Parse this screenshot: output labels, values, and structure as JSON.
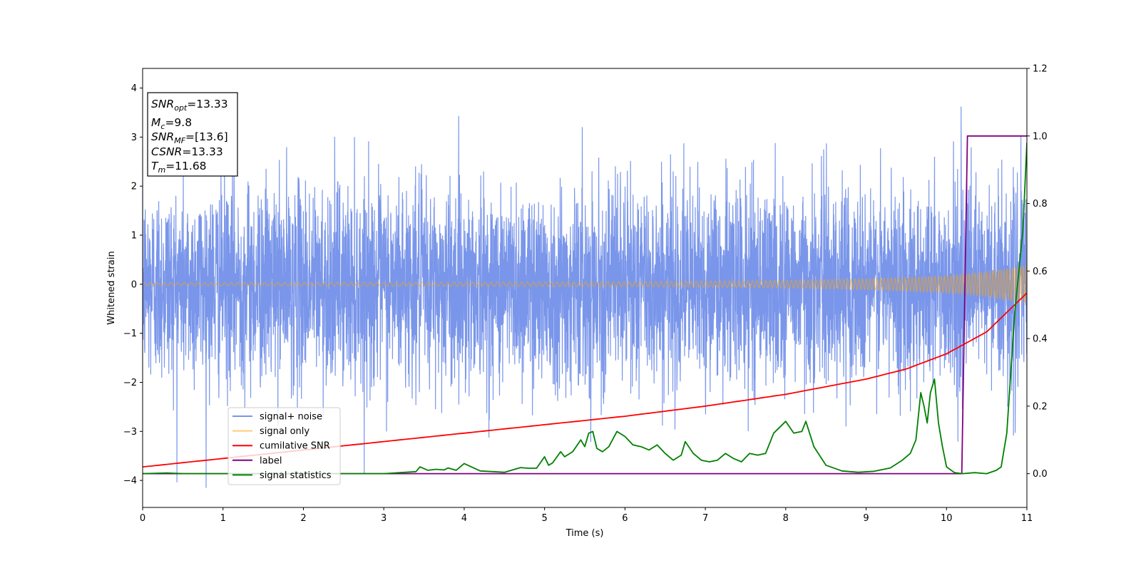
{
  "chart_data": {
    "type": "line",
    "xlabel": "Time (s)",
    "ylabel": "Whitened strain",
    "xlim": [
      0,
      11
    ],
    "ylim": [
      -4.55,
      4.4
    ],
    "y2lim": [
      -0.1,
      1.2
    ],
    "x_ticks": [
      "0",
      "1",
      "2",
      "3",
      "4",
      "5",
      "6",
      "7",
      "8",
      "9",
      "10",
      "11"
    ],
    "y_ticks": [
      "4",
      "3",
      "2",
      "1",
      "0",
      "−1",
      "−2",
      "−3",
      "−4"
    ],
    "y2_ticks": [
      "1.2",
      "1.0",
      "0.8",
      "0.6",
      "0.4",
      "0.2",
      "0.0"
    ],
    "grid": false,
    "legend_position": "lower-left",
    "info_box": {
      "snr_opt": {
        "name": "SNR",
        "sub": "opt",
        "value": "=13.33"
      },
      "mc": {
        "name": "M",
        "sub": "c",
        "value": "=9.8"
      },
      "snr_mf": {
        "name": "SNR",
        "sub": "MF",
        "value": "=[13.6]"
      },
      "csnr": {
        "name": "CSNR",
        "sub": "",
        "value": "=13.33"
      },
      "tm": {
        "name": "T",
        "sub": "m",
        "value": "=11.68"
      }
    },
    "series": [
      {
        "name": "signal+ noise",
        "axis": "left",
        "color": "#4169e1",
        "description_values": "white noise with std ≈ 1.0, sampled every ~0.0022 s over 0–11 s, extreme peaks reaching ~4.0 and ~−4.15"
      },
      {
        "name": "signal only",
        "axis": "left",
        "color": "#ffa500",
        "envelope": {
          "x": [
            0,
            6,
            8,
            9,
            10,
            10.5,
            11
          ],
          "amplitude": [
            0.03,
            0.05,
            0.08,
            0.11,
            0.17,
            0.25,
            0.38
          ]
        },
        "frequency_hz": [
          12,
          30
        ]
      },
      {
        "name": "cumilative SNR",
        "axis": "right",
        "color": "#ff0000",
        "x": [
          0,
          1,
          2,
          3,
          4,
          5,
          6,
          7,
          8,
          9,
          9.5,
          10,
          10.5,
          11
        ],
        "y": [
          0.02,
          0.045,
          0.07,
          0.095,
          0.12,
          0.145,
          0.17,
          0.2,
          0.235,
          0.28,
          0.31,
          0.355,
          0.42,
          0.535
        ]
      },
      {
        "name": "label",
        "axis": "right",
        "color": "#800080",
        "x": [
          0,
          10.19,
          10.26,
          11
        ],
        "y": [
          0.0,
          0.0,
          1.0,
          1.0
        ]
      },
      {
        "name": "signal statistics",
        "axis": "right",
        "color": "#008000",
        "x": [
          0,
          0.3,
          0.5,
          1,
          2,
          3,
          3.2,
          3.4,
          3.45,
          3.55,
          3.65,
          3.75,
          3.8,
          3.9,
          4,
          4.2,
          4.5,
          4.7,
          4.8,
          4.9,
          5.0,
          5.05,
          5.1,
          5.2,
          5.25,
          5.35,
          5.45,
          5.5,
          5.55,
          5.6,
          5.65,
          5.72,
          5.8,
          5.9,
          6.0,
          6.1,
          6.2,
          6.3,
          6.4,
          6.5,
          6.6,
          6.7,
          6.75,
          6.85,
          6.95,
          7.05,
          7.15,
          7.25,
          7.35,
          7.45,
          7.55,
          7.65,
          7.75,
          7.85,
          8.0,
          8.1,
          8.2,
          8.25,
          8.35,
          8.5,
          8.7,
          8.9,
          9.1,
          9.3,
          9.45,
          9.55,
          9.62,
          9.68,
          9.72,
          9.76,
          9.8,
          9.85,
          9.9,
          9.95,
          10.0,
          10.1,
          10.2,
          10.35,
          10.5,
          10.62,
          10.68,
          10.75,
          10.85,
          10.95,
          11.0
        ],
        "y": [
          0.0,
          0.002,
          0.0,
          0.0,
          0.0,
          0.0,
          0.003,
          0.006,
          0.02,
          0.01,
          0.013,
          0.011,
          0.017,
          0.01,
          0.03,
          0.008,
          0.004,
          0.018,
          0.016,
          0.016,
          0.05,
          0.025,
          0.032,
          0.065,
          0.05,
          0.065,
          0.1,
          0.08,
          0.12,
          0.125,
          0.075,
          0.065,
          0.08,
          0.125,
          0.11,
          0.085,
          0.08,
          0.07,
          0.085,
          0.06,
          0.04,
          0.055,
          0.095,
          0.06,
          0.04,
          0.035,
          0.04,
          0.06,
          0.045,
          0.035,
          0.06,
          0.055,
          0.06,
          0.12,
          0.155,
          0.12,
          0.125,
          0.155,
          0.08,
          0.025,
          0.008,
          0.004,
          0.007,
          0.017,
          0.04,
          0.06,
          0.1,
          0.24,
          0.2,
          0.15,
          0.24,
          0.28,
          0.15,
          0.08,
          0.02,
          0.003,
          0.0,
          0.003,
          0.0,
          0.01,
          0.02,
          0.12,
          0.48,
          0.72,
          0.98
        ]
      }
    ]
  }
}
